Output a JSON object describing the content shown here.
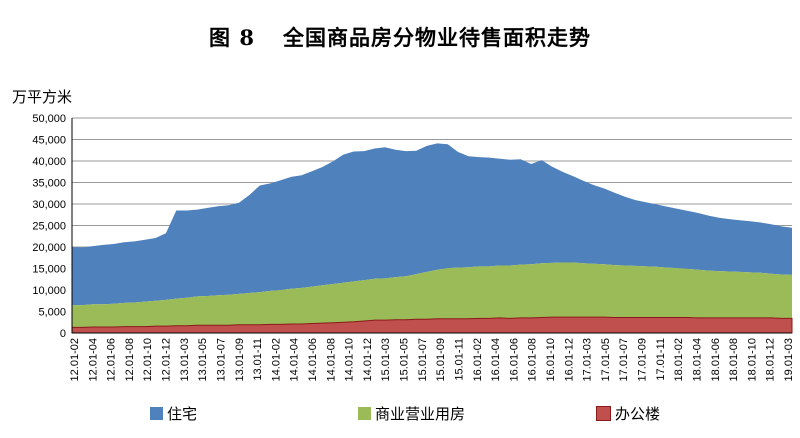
{
  "chart_data": {
    "type": "area",
    "stacked": true,
    "title_prefix": "图 8",
    "title": "全国商品房分物业待售面积走势",
    "ylabel": "万平方米",
    "ylim": [
      0,
      50000
    ],
    "yticks": [
      "0",
      "5,000",
      "10,000",
      "15,000",
      "20,000",
      "25,000",
      "30,000",
      "35,000",
      "40,000",
      "45,000",
      "50,000"
    ],
    "grid": true,
    "legend_position": "bottom",
    "xtick_labels": [
      "12.01-02",
      "12.01-04",
      "12.01-06",
      "12.01-08",
      "12.01-10",
      "12.01-12",
      "13.01-03",
      "13.01-05",
      "13.01-07",
      "13.01-09",
      "13.01-11",
      "14.01-02",
      "14.01-04",
      "14.01-06",
      "14.01-08",
      "14.01-10",
      "14.01-12",
      "15.01-03",
      "15.01-05",
      "15.01-07",
      "15.01-09",
      "15.01-11",
      "16.01-02",
      "16.01-04",
      "16.01-06",
      "16.01-08",
      "16.01-10",
      "16.01-12",
      "17.01-03",
      "17.01-05",
      "17.01-07",
      "17.01-09",
      "17.01-11",
      "18.01-02",
      "18.01-04",
      "18.01-06",
      "18.01-08",
      "18.01-10",
      "18.01-12",
      "19.01-03"
    ],
    "series": [
      {
        "name": "住宅",
        "color": "#4F81BD",
        "values": [
          13500,
          13400,
          13500,
          13800,
          13900,
          14100,
          14200,
          14400,
          14600,
          15500,
          20500,
          20300,
          20200,
          20500,
          20700,
          20800,
          21200,
          22800,
          24800,
          25000,
          25500,
          26000,
          26200,
          26800,
          27500,
          28500,
          29800,
          30200,
          30000,
          30300,
          30500,
          29600,
          29100,
          28700,
          29300,
          29400,
          28800,
          26900,
          25800,
          25400,
          25300,
          24800,
          24600,
          24500,
          23300,
          24000,
          22400,
          21100,
          20100,
          19200,
          18300,
          17600,
          16800,
          16000,
          15300,
          14900,
          14500,
          14200,
          13800,
          13500,
          13200,
          12800,
          12400,
          12200,
          12000,
          11900,
          11700,
          11500,
          11200,
          11000
        ]
      },
      {
        "name": "商业营业用房",
        "color": "#9BBB59",
        "values": [
          5200,
          5200,
          5300,
          5300,
          5400,
          5500,
          5600,
          5800,
          5900,
          6100,
          6300,
          6500,
          6700,
          6800,
          7000,
          7100,
          7200,
          7400,
          7600,
          7800,
          8000,
          8200,
          8400,
          8600,
          8800,
          9000,
          9200,
          9400,
          9500,
          9600,
          9700,
          9900,
          10100,
          10500,
          11000,
          11400,
          11800,
          11900,
          12000,
          12100,
          12100,
          12200,
          12300,
          12400,
          12500,
          12600,
          12600,
          12700,
          12700,
          12500,
          12400,
          12300,
          12200,
          12100,
          12000,
          11900,
          11800,
          11600,
          11500,
          11300,
          11200,
          11000,
          10900,
          10800,
          10700,
          10600,
          10500,
          10300,
          10200,
          10100
        ]
      },
      {
        "name": "办公楼",
        "color": "#C0504D",
        "values": [
          1300,
          1300,
          1400,
          1400,
          1400,
          1500,
          1500,
          1500,
          1600,
          1600,
          1700,
          1700,
          1800,
          1800,
          1800,
          1800,
          1900,
          1900,
          1900,
          2000,
          2000,
          2100,
          2100,
          2200,
          2300,
          2400,
          2500,
          2600,
          2800,
          3000,
          3000,
          3100,
          3100,
          3200,
          3200,
          3300,
          3300,
          3300,
          3300,
          3400,
          3400,
          3500,
          3400,
          3500,
          3500,
          3600,
          3700,
          3700,
          3700,
          3700,
          3700,
          3700,
          3600,
          3600,
          3600,
          3600,
          3600,
          3600,
          3600,
          3600,
          3500,
          3500,
          3500,
          3500,
          3500,
          3500,
          3500,
          3500,
          3400,
          3400
        ]
      }
    ]
  }
}
